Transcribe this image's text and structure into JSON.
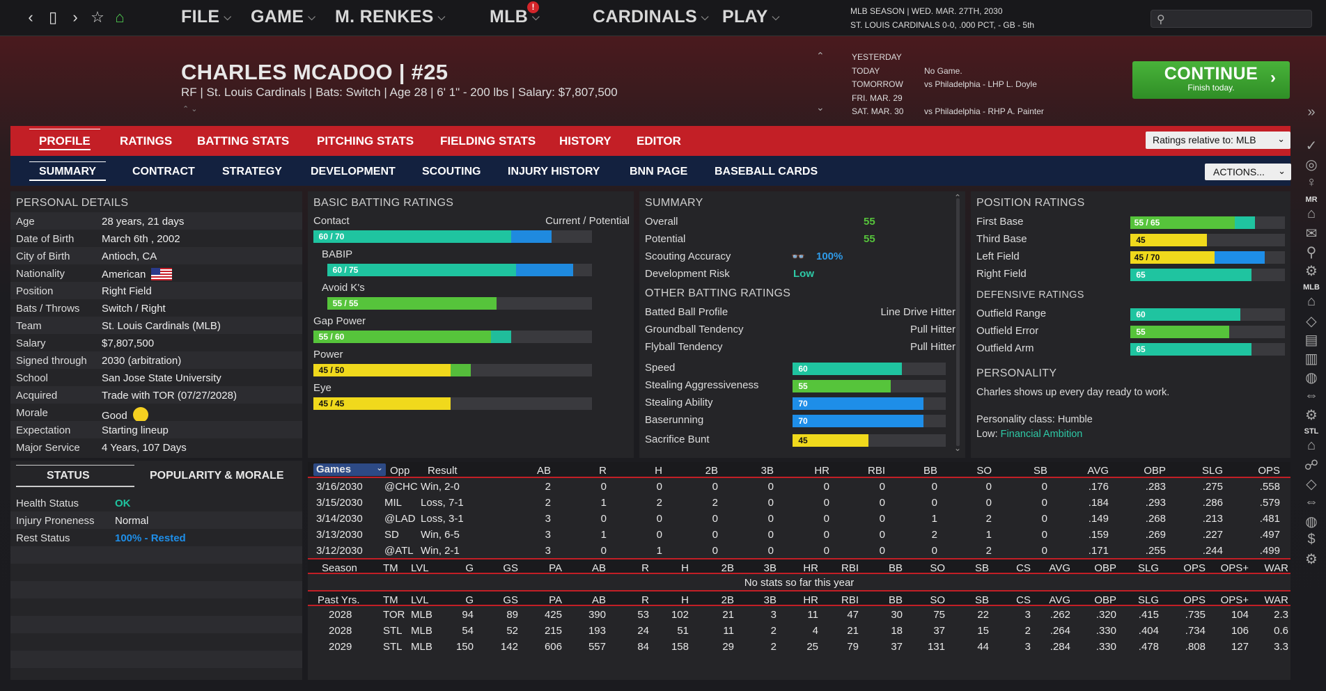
{
  "menu": {
    "items": [
      "FILE",
      "GAME",
      "M. RENKES",
      "MLB",
      "CARDINALS",
      "PLAY"
    ],
    "badge": "!"
  },
  "season": {
    "line1": "MLB SEASON  |  WED. MAR. 27TH, 2030",
    "line2": "ST. LOUIS CARDINALS  0-0, .000 PCT, - GB - 5th"
  },
  "player": {
    "name": "CHARLES MCADOO  |  #25",
    "info": "RF | St. Louis Cardinals  |  Bats: Switch  |  Age 28  |  6' 1\" - 200 lbs  |  Salary: $7,807,500"
  },
  "schedule": [
    {
      "day": "YESTERDAY",
      "game": ""
    },
    {
      "day": "TODAY",
      "game": "No Game."
    },
    {
      "day": "TOMORROW",
      "game": "vs Philadelphia - LHP L. Doyle"
    },
    {
      "day": "FRI. MAR. 29",
      "game": ""
    },
    {
      "day": "SAT. MAR. 30",
      "game": "vs Philadelphia - RHP A. Painter"
    }
  ],
  "continue": {
    "label": "CONTINUE",
    "sub": "Finish today."
  },
  "tabs1": [
    "PROFILE",
    "RATINGS",
    "BATTING STATS",
    "PITCHING STATS",
    "FIELDING STATS",
    "HISTORY",
    "EDITOR"
  ],
  "ratings_select": "Ratings relative to: MLB",
  "tabs2": [
    "SUMMARY",
    "CONTRACT",
    "STRATEGY",
    "DEVELOPMENT",
    "SCOUTING",
    "INJURY HISTORY",
    "BNN PAGE",
    "BASEBALL CARDS"
  ],
  "actions": "ACTIONS...",
  "personal": {
    "title": "PERSONAL DETAILS",
    "rows": [
      {
        "k": "Age",
        "v": "28 years, 21 days"
      },
      {
        "k": "Date of Birth",
        "v": "March 6th , 2002"
      },
      {
        "k": "City of Birth",
        "v": "Antioch, CA"
      },
      {
        "k": "Nationality",
        "v": "American"
      },
      {
        "k": "Position",
        "v": "Right Field"
      },
      {
        "k": "Bats / Throws",
        "v": "Switch / Right"
      },
      {
        "k": "Team",
        "v": "St. Louis Cardinals (MLB)"
      },
      {
        "k": "Salary",
        "v": "$7,807,500"
      },
      {
        "k": "Signed through",
        "v": "2030 (arbitration)"
      },
      {
        "k": "School",
        "v": "San Jose State University"
      },
      {
        "k": "Acquired",
        "v": "Trade with TOR (07/27/2028)"
      },
      {
        "k": "Morale",
        "v": "Good"
      },
      {
        "k": "Expectation",
        "v": "Starting lineup"
      },
      {
        "k": "Major Service",
        "v": "4 Years, 107 Days"
      }
    ]
  },
  "status": {
    "tabs": [
      "STATUS",
      "POPULARITY & MORALE"
    ],
    "rows": [
      {
        "k": "Health Status",
        "v": "OK"
      },
      {
        "k": "Injury Proneness",
        "v": "Normal"
      },
      {
        "k": "Rest Status",
        "v": "100% - Rested"
      }
    ]
  },
  "batting": {
    "title": "BASIC BATTING RATINGS",
    "header": "Current / Potential",
    "rows": [
      {
        "name": "Contact",
        "label": "60 / 70",
        "cur": 60,
        "pot": 70,
        "indent": false
      },
      {
        "name": "BABIP",
        "label": "60 / 75",
        "cur": 60,
        "pot": 75,
        "indent": true
      },
      {
        "name": "Avoid K's",
        "label": "55 / 55",
        "cur": 55,
        "pot": 55,
        "indent": true
      },
      {
        "name": "Gap Power",
        "label": "55 / 60",
        "cur": 55,
        "pot": 60,
        "indent": false
      },
      {
        "name": "Power",
        "label": "45 / 50",
        "cur": 45,
        "pot": 50,
        "indent": false
      },
      {
        "name": "Eye",
        "label": "45 / 45",
        "cur": 45,
        "pot": 45,
        "indent": false
      }
    ]
  },
  "summary": {
    "title": "SUMMARY",
    "overall_k": "Overall",
    "overall": "55",
    "potential_k": "Potential",
    "potential": "55",
    "scout_k": "Scouting Accuracy",
    "scout": "100%",
    "risk_k": "Development Risk",
    "risk": "Low",
    "other_title": "OTHER BATTING RATINGS",
    "other": [
      {
        "k": "Batted Ball Profile",
        "v": "Line Drive Hitter"
      },
      {
        "k": "Groundball Tendency",
        "v": "Pull Hitter"
      },
      {
        "k": "Flyball Tendency",
        "v": "Pull Hitter"
      }
    ],
    "speed": [
      {
        "k": "Speed",
        "v": 60
      },
      {
        "k": "Stealing Aggressiveness",
        "v": 55
      },
      {
        "k": "Stealing Ability",
        "v": 70
      },
      {
        "k": "Baserunning",
        "v": 70
      },
      {
        "k": "Sacrifice Bunt",
        "v": 45
      }
    ]
  },
  "position": {
    "title": "POSITION RATINGS",
    "rows": [
      {
        "k": "First Base",
        "label": "55 / 65",
        "cur": 55,
        "pot": 65
      },
      {
        "k": "Third Base",
        "label": "45",
        "cur": 45,
        "pot": 45
      },
      {
        "k": "Left Field",
        "label": "45 / 70",
        "cur": 45,
        "pot": 70
      },
      {
        "k": "Right Field",
        "label": "65",
        "cur": 65,
        "pot": 65
      }
    ],
    "def_title": "DEFENSIVE RATINGS",
    "def": [
      {
        "k": "Outfield Range",
        "v": 60
      },
      {
        "k": "Outfield Error",
        "v": 55
      },
      {
        "k": "Outfield Arm",
        "v": 65
      }
    ]
  },
  "personality": {
    "title": "PERSONALITY",
    "desc": "Charles shows up every day ready to work.",
    "class": "Personality class: Humble",
    "low_k": "Low: ",
    "low_v": "Financial Ambition"
  },
  "games": {
    "headers": [
      "Games",
      "Opp",
      "Result",
      "AB",
      "R",
      "H",
      "2B",
      "3B",
      "HR",
      "RBI",
      "BB",
      "SO",
      "SB",
      "AVG",
      "OBP",
      "SLG",
      "OPS"
    ],
    "rows": [
      [
        "3/16/2030",
        "@CHC",
        "Win, 2-0",
        "2",
        "0",
        "0",
        "0",
        "0",
        "0",
        "0",
        "0",
        "0",
        "0",
        ".176",
        ".283",
        ".275",
        ".558"
      ],
      [
        "3/15/2030",
        "MIL",
        "Loss, 7-1",
        "2",
        "1",
        "2",
        "2",
        "0",
        "0",
        "0",
        "0",
        "0",
        "0",
        ".184",
        ".293",
        ".286",
        ".579"
      ],
      [
        "3/14/2030",
        "@LAD",
        "Loss, 3-1",
        "3",
        "0",
        "0",
        "0",
        "0",
        "0",
        "0",
        "1",
        "2",
        "0",
        ".149",
        ".268",
        ".213",
        ".481"
      ],
      [
        "3/13/2030",
        "SD",
        "Win, 6-5",
        "3",
        "1",
        "0",
        "0",
        "0",
        "0",
        "0",
        "2",
        "1",
        "0",
        ".159",
        ".269",
        ".227",
        ".497"
      ],
      [
        "3/12/2030",
        "@ATL",
        "Win, 2-1",
        "3",
        "0",
        "1",
        "0",
        "0",
        "0",
        "0",
        "0",
        "2",
        "0",
        ".171",
        ".255",
        ".244",
        ".499"
      ]
    ]
  },
  "season_stats": {
    "headers": [
      "Season",
      "TM",
      "LVL",
      "G",
      "GS",
      "PA",
      "AB",
      "R",
      "H",
      "2B",
      "3B",
      "HR",
      "RBI",
      "BB",
      "SO",
      "SB",
      "CS",
      "AVG",
      "OBP",
      "SLG",
      "OPS",
      "OPS+",
      "WAR"
    ],
    "empty": "No stats so far this year"
  },
  "past": {
    "headers": [
      "Past Yrs.",
      "TM",
      "LVL",
      "G",
      "GS",
      "PA",
      "AB",
      "R",
      "H",
      "2B",
      "3B",
      "HR",
      "RBI",
      "BB",
      "SO",
      "SB",
      "CS",
      "AVG",
      "OBP",
      "SLG",
      "OPS",
      "OPS+",
      "WAR"
    ],
    "rows": [
      [
        "2028",
        "TOR",
        "MLB",
        "94",
        "89",
        "425",
        "390",
        "53",
        "102",
        "21",
        "3",
        "11",
        "47",
        "30",
        "75",
        "22",
        "3",
        ".262",
        ".320",
        ".415",
        ".735",
        "104",
        "2.3"
      ],
      [
        "2028",
        "STL",
        "MLB",
        "54",
        "52",
        "215",
        "193",
        "24",
        "51",
        "11",
        "2",
        "4",
        "21",
        "18",
        "37",
        "15",
        "2",
        ".264",
        ".330",
        ".404",
        ".734",
        "106",
        "0.6"
      ],
      [
        "2029",
        "STL",
        "MLB",
        "150",
        "142",
        "606",
        "557",
        "84",
        "158",
        "29",
        "2",
        "25",
        "79",
        "37",
        "131",
        "44",
        "3",
        ".284",
        ".330",
        ".478",
        ".808",
        "127",
        "3.3"
      ]
    ]
  },
  "sidebar": {
    "labels": [
      "MR",
      "MLB",
      "STL"
    ]
  },
  "colors": {
    "green": "#56c43b",
    "teal": "#1fc4a0",
    "yellow": "#f0d91c",
    "blue": "#1e8ee8",
    "red": "#c31f26"
  }
}
